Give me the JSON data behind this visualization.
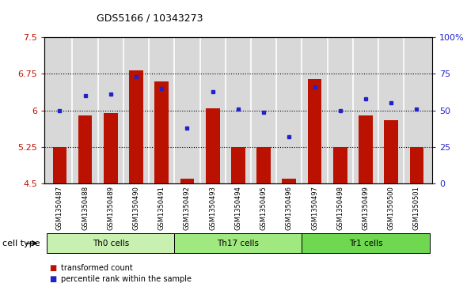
{
  "title": "GDS5166 / 10343273",
  "samples": [
    "GSM1350487",
    "GSM1350488",
    "GSM1350489",
    "GSM1350490",
    "GSM1350491",
    "GSM1350492",
    "GSM1350493",
    "GSM1350494",
    "GSM1350495",
    "GSM1350496",
    "GSM1350497",
    "GSM1350498",
    "GSM1350499",
    "GSM1350500",
    "GSM1350501"
  ],
  "transformed_counts": [
    5.25,
    5.9,
    5.95,
    6.82,
    6.6,
    4.6,
    6.05,
    5.25,
    5.25,
    4.6,
    6.65,
    5.25,
    5.9,
    5.8,
    5.25
  ],
  "percentile_ranks": [
    50,
    60,
    61,
    73,
    65,
    38,
    63,
    51,
    49,
    32,
    66,
    50,
    58,
    55,
    51
  ],
  "cell_types": [
    {
      "label": "Th0 cells",
      "count": 5,
      "color": "#c8f0b0"
    },
    {
      "label": "Th17 cells",
      "count": 5,
      "color": "#a0e880"
    },
    {
      "label": "Tr1 cells",
      "count": 5,
      "color": "#70d850"
    }
  ],
  "ylim_left": [
    4.5,
    7.5
  ],
  "ylim_right": [
    0,
    100
  ],
  "yticks_left": [
    4.5,
    5.25,
    6.0,
    6.75,
    7.5
  ],
  "yticks_right": [
    0,
    25,
    50,
    75,
    100
  ],
  "ytick_labels_left": [
    "4.5",
    "5.25",
    "6",
    "6.75",
    "7.5"
  ],
  "ytick_labels_right": [
    "0",
    "25",
    "50",
    "75",
    "100%"
  ],
  "hlines": [
    5.25,
    6.0,
    6.75
  ],
  "bar_color": "#bb1100",
  "dot_color": "#2222cc",
  "bar_width": 0.55,
  "bg_color": "#d8d8d8",
  "plot_bg": "#ffffff",
  "cell_type_label": "cell type",
  "legend_items": [
    {
      "color": "#bb1100",
      "label": "transformed count"
    },
    {
      "color": "#2222cc",
      "label": "percentile rank within the sample"
    }
  ]
}
